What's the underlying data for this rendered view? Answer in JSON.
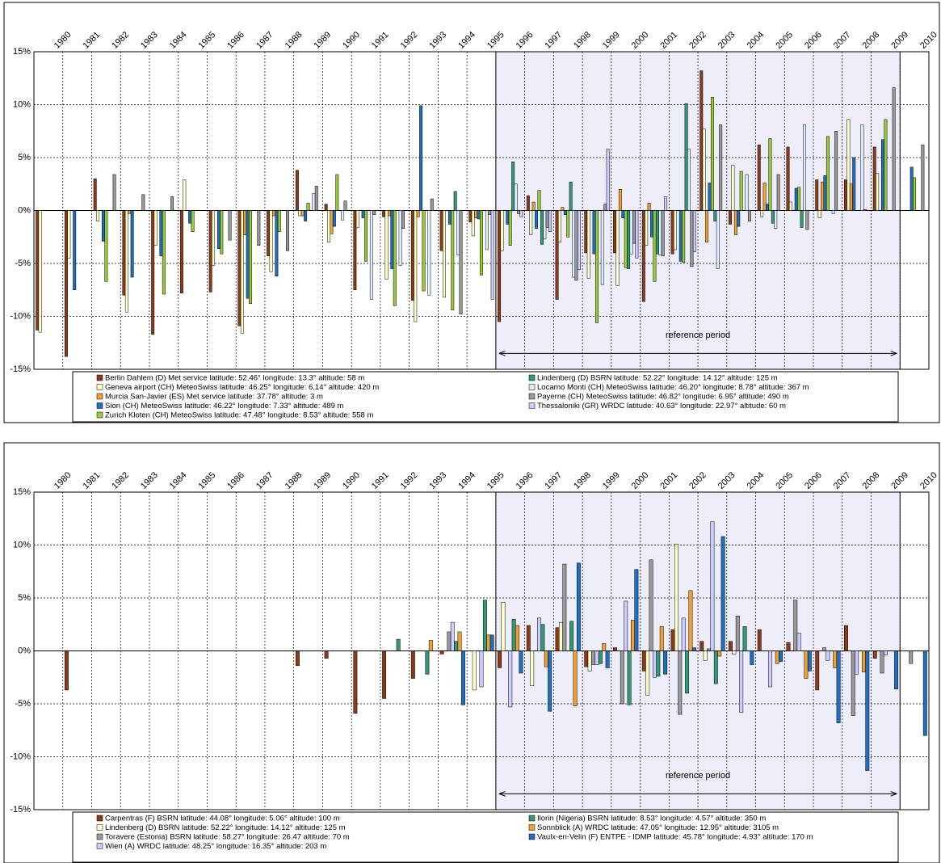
{
  "chart_data": [
    {
      "type": "bar",
      "categories": [
        1980,
        1981,
        1982,
        1983,
        1984,
        1985,
        1986,
        1987,
        1988,
        1989,
        1990,
        1991,
        1992,
        1993,
        1994,
        1995,
        1996,
        1997,
        1998,
        1999,
        2000,
        2001,
        2002,
        2003,
        2004,
        2005,
        2006,
        2007,
        2008,
        2009,
        2010
      ],
      "ylim": [
        -15,
        15
      ],
      "yticks": [
        {
          "value": -15,
          "label": "-15%"
        },
        {
          "value": -10,
          "label": "-10%"
        },
        {
          "value": -5,
          "label": "-5%"
        },
        {
          "value": 0,
          "label": "0%"
        },
        {
          "value": 5,
          "label": "5%"
        },
        {
          "value": 10,
          "label": "10%"
        },
        {
          "value": 15,
          "label": "15%"
        }
      ],
      "grid": true,
      "reference_period": {
        "label": "reference period",
        "from": 1996,
        "to": 2009,
        "color": "#eeeefa"
      },
      "series": [
        {
          "name": "Berlin Dahlem (D) Met service    latitude: 52.46°  longitude: 13.3°  altitude: 58 m",
          "color": "#8b3a1a",
          "values": [
            -11.3,
            -13.8,
            3.0,
            -8.0,
            -11.7,
            -7.8,
            -7.7,
            -10.9,
            -4.3,
            3.8,
            0.6,
            -7.5,
            -0.6,
            -8.5,
            -3.8,
            -1.1,
            -10.5,
            1.4,
            -8.4,
            -4.0,
            -4.0,
            -8.6,
            -4.1,
            13.2,
            -1.3,
            6.2,
            6.0,
            2.9,
            2.9,
            6.0,
            null
          ]
        },
        {
          "name": "Geneva airport (CH) MeteoSwiss    latitude: 46.25°  longitude: 6.14°  altitude: 420 m",
          "color": "#ffffcc",
          "values": [
            -11.5,
            -4.5,
            -1.0,
            -9.6,
            -3.3,
            2.9,
            -5.2,
            -11.6,
            -5.8,
            -0.5,
            -3.0,
            -1.6,
            -6.5,
            -10.5,
            -8.2,
            -2.4,
            -3.8,
            -2.3,
            -3.0,
            -6.4,
            -7.1,
            -3.3,
            -3.7,
            7.7,
            4.3,
            -0.6,
            0.8,
            -0.7,
            8.6,
            3.5,
            null
          ]
        },
        {
          "name": "Murcia San-Javier (ES) Met service    latitude: 37.78°  altitude: 3 m",
          "color": "#f0a030",
          "values": [
            null,
            null,
            null,
            -0.3,
            null,
            null,
            null,
            -2.3,
            -0.5,
            -0.5,
            -2.2,
            null,
            -0.5,
            -0.6,
            null,
            -0.7,
            null,
            0.8,
            0.3,
            null,
            2.0,
            0.7,
            null,
            -3.0,
            -2.3,
            2.6,
            null,
            2.7,
            2.5,
            null,
            null
          ]
        },
        {
          "name": "Sion (CH) MeteoSwiss    latitude: 46.22°  longitude: 7.33°  altitude: 489 m",
          "color": "#1f6fc0",
          "values": [
            null,
            -7.5,
            -2.9,
            -6.3,
            -4.3,
            -1.2,
            -3.6,
            -8.3,
            -6.2,
            -1.0,
            -1.5,
            -0.7,
            -5.5,
            9.9,
            -1.3,
            -0.8,
            -1.3,
            -1.7,
            -0.4,
            -4.1,
            -0.7,
            -2.5,
            -4.8,
            2.6,
            -1.5,
            0.6,
            2.1,
            3.3,
            5.0,
            6.7,
            4.1
          ]
        },
        {
          "name": "Zurich Kloten (CH) MeteoSwiss    latitude: 47.48°  longitude: 8.53°  altitude: 558 m",
          "color": "#99cc33",
          "values": [
            null,
            null,
            -6.7,
            null,
            -7.9,
            -2.0,
            -4.1,
            -8.8,
            -2.0,
            0.7,
            3.4,
            -4.8,
            -9.0,
            -7.6,
            -9.4,
            -6.1,
            -3.3,
            1.9,
            -2.5,
            -10.6,
            -5.4,
            -6.7,
            -4.9,
            10.7,
            3.7,
            6.8,
            2.2,
            7.0,
            null,
            8.6,
            3.1
          ]
        },
        {
          "name": "Lindenberg (D) BSRN    latitude: 52.22°  longitude: 14.12°  altitude: 125 m",
          "color": "#339977",
          "values": [
            null,
            null,
            null,
            null,
            null,
            null,
            null,
            null,
            null,
            null,
            null,
            null,
            null,
            null,
            1.8,
            null,
            4.6,
            -3.2,
            2.7,
            null,
            -5.5,
            -4.1,
            10.1,
            -1.0,
            null,
            -1.2,
            -1.6,
            null,
            null,
            null,
            null
          ]
        },
        {
          "name": "Locarno Monti (CH) MeteoSwiss    latitude: 46.20°  longitude: 8.78°  altitude: 367 m",
          "color": "#ddeeff",
          "values": [
            null,
            null,
            null,
            null,
            null,
            null,
            null,
            null,
            null,
            1.6,
            -0.9,
            -8.4,
            -5.2,
            -8.0,
            -4.2,
            -3.7,
            2.5,
            -2.7,
            -6.3,
            -7.0,
            -4.1,
            -4.2,
            5.8,
            -5.5,
            3.4,
            -1.7,
            8.1,
            -0.3,
            8.1,
            null,
            null
          ]
        },
        {
          "name": "Payerne (CH) MeteoSwiss    latitude: 46.82°  longitude: 6.95°  altitude: 490 m",
          "color": "#999999",
          "values": [
            null,
            null,
            3.4,
            1.5,
            1.3,
            null,
            -2.8,
            -3.3,
            -3.8,
            2.3,
            0.9,
            -0.4,
            -1.7,
            1.1,
            -9.8,
            -0.4,
            -0.3,
            -1.6,
            -6.6,
            0.6,
            -3.1,
            -4.3,
            -5.3,
            8.1,
            -1.0,
            3.4,
            -1.8,
            7.5,
            0.1,
            11.6,
            6.2
          ]
        },
        {
          "name": "Thessaloniki (GR) WRDC    latitude: 40.63°  longitude: 22.97°  altitude: 60 m",
          "color": "#ccccff",
          "values": [
            null,
            null,
            null,
            null,
            null,
            null,
            null,
            null,
            null,
            null,
            null,
            null,
            null,
            null,
            null,
            -8.4,
            -0.6,
            -2.0,
            -5.6,
            5.8,
            -4.5,
            1.3,
            -3.9,
            null,
            null,
            null,
            null,
            null,
            null,
            null,
            null
          ]
        }
      ]
    },
    {
      "type": "bar",
      "categories": [
        1980,
        1981,
        1982,
        1983,
        1984,
        1985,
        1986,
        1987,
        1988,
        1989,
        1990,
        1991,
        1992,
        1993,
        1994,
        1995,
        1996,
        1997,
        1998,
        1999,
        2000,
        2001,
        2002,
        2003,
        2004,
        2005,
        2006,
        2007,
        2008,
        2009,
        2010
      ],
      "ylim": [
        -15,
        15
      ],
      "yticks": [
        {
          "value": -15,
          "label": "-15%"
        },
        {
          "value": -10,
          "label": "-10%"
        },
        {
          "value": -5,
          "label": "-5%"
        },
        {
          "value": 0,
          "label": "0%"
        },
        {
          "value": 5,
          "label": "5%"
        },
        {
          "value": 10,
          "label": "10%"
        },
        {
          "value": 15,
          "label": "15%"
        }
      ],
      "grid": true,
      "reference_period": {
        "label": "reference period",
        "from": 1996,
        "to": 2009,
        "color": "#eeeefa"
      },
      "series": [
        {
          "name": "Carpentras (F) BSRN    latitude: 44.08°  longitude: 5.06°  altitude: 100 m",
          "color": "#8b3a1a",
          "values": [
            null,
            -3.7,
            null,
            null,
            null,
            null,
            null,
            null,
            null,
            -1.4,
            -0.7,
            -5.9,
            -4.5,
            -2.6,
            -0.3,
            null,
            -1.6,
            2.4,
            2.2,
            -1.5,
            0.3,
            -1.9,
            2.0,
            0.9,
            0.9,
            2.0,
            0.8,
            -3.7,
            2.4,
            -0.7,
            null
          ]
        },
        {
          "name": "Lindenberg (D) BSRN    latitude: 52.22°  longitude: 14.12°  altitude: 125 m",
          "color": "#ffffcc",
          "values": [
            null,
            null,
            null,
            null,
            null,
            null,
            null,
            null,
            null,
            null,
            null,
            null,
            null,
            null,
            null,
            -3.7,
            4.6,
            -3.3,
            2.7,
            -1.9,
            null,
            -4.2,
            10.1,
            -0.9,
            -0.3,
            null,
            null,
            null,
            null,
            null,
            null
          ]
        },
        {
          "name": "Toravere (Estonia) BSRN    latitude: 58.27°  longitude: 26.47  altitude: 70 m",
          "color": "#999999",
          "values": [
            null,
            null,
            null,
            null,
            null,
            null,
            null,
            null,
            null,
            null,
            null,
            null,
            null,
            null,
            1.8,
            null,
            null,
            null,
            8.2,
            -1.3,
            -5.0,
            8.6,
            -6.0,
            0.2,
            3.3,
            null,
            4.8,
            0.3,
            -6.1,
            -2.1,
            -1.2
          ]
        },
        {
          "name": "Wien (A) WRDC    latitude: 48.25°  longitude: 16.35°  altitude: 203 m",
          "color": "#ccccff",
          "values": [
            null,
            null,
            null,
            null,
            null,
            null,
            null,
            null,
            null,
            null,
            null,
            null,
            null,
            null,
            2.7,
            -3.4,
            -5.3,
            3.1,
            null,
            -1.3,
            4.7,
            -2.5,
            3.1,
            12.2,
            -5.8,
            -3.4,
            1.7,
            -0.9,
            -2.2,
            -0.4,
            null
          ]
        },
        {
          "name": "Ilorin (Nigeria) BSRN    latitude: 8.53°  longitude: 4.57°  altitude: 350 m",
          "color": "#339977",
          "values": [
            null,
            null,
            null,
            null,
            null,
            null,
            null,
            null,
            null,
            null,
            null,
            null,
            1.1,
            -2.2,
            0.9,
            4.8,
            3.0,
            2.5,
            2.8,
            -1.2,
            -5.1,
            -2.4,
            -4.0,
            -3.1,
            2.3,
            null,
            null,
            null,
            null,
            null,
            null
          ]
        },
        {
          "name": "Sonnblick (A) WRDC    latitude: 47.05°  longitude: 12.95°  altitude: 3105 m",
          "color": "#f0a030",
          "values": [
            null,
            null,
            null,
            null,
            null,
            null,
            null,
            null,
            null,
            null,
            null,
            null,
            null,
            1.0,
            1.8,
            1.5,
            2.4,
            -1.5,
            -5.2,
            0.7,
            2.9,
            2.3,
            5.7,
            -0.5,
            null,
            -1.2,
            -2.6,
            -1.6,
            -2.0,
            null,
            null
          ]
        },
        {
          "name": "Vaulx-en-Velin (F) ENTPE - IDMP    latitude: 45.78°  longitude: 4.93°  altitude: 170 m",
          "color": "#1f6fc0",
          "values": [
            null,
            null,
            null,
            null,
            null,
            null,
            null,
            null,
            null,
            null,
            null,
            null,
            null,
            null,
            -5.1,
            1.5,
            -2.1,
            -5.7,
            8.3,
            -1.6,
            7.7,
            -2.2,
            0.3,
            10.8,
            -1.3,
            -1.0,
            -1.9,
            -6.8,
            -11.3,
            -3.6,
            -8.0
          ]
        }
      ]
    }
  ]
}
